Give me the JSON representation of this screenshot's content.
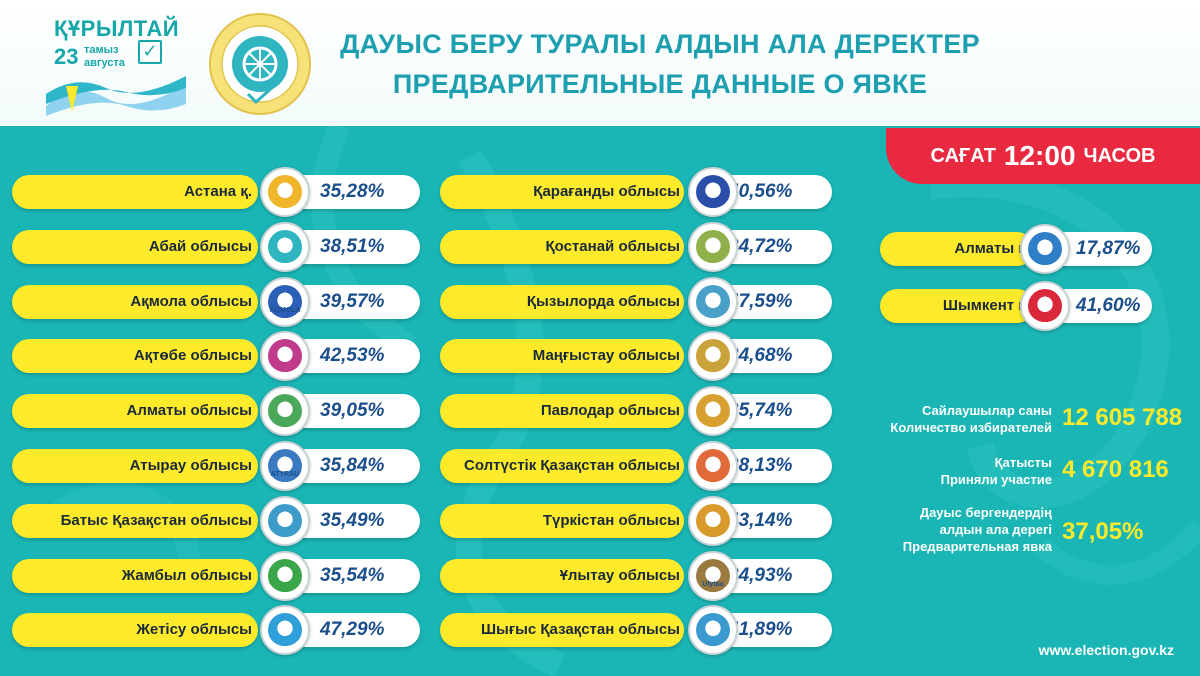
{
  "header": {
    "logo_title": "ҚҰРЫЛТАЙ",
    "logo_day": "23",
    "logo_month_kz": "тамыз",
    "logo_month_ru": "августа",
    "title_kz": "ДАУЫС БЕРУ ТУРАЛЫ АЛДЫН АЛА ДЕРЕКТЕР",
    "title_ru": "ПРЕДВАРИТЕЛЬНЫЕ ДАННЫЕ О ЯВКЕ"
  },
  "time_badge": {
    "prefix": "САҒАТ",
    "time": "12:00",
    "suffix": "ЧАСОВ"
  },
  "left_column": [
    {
      "label": "Астана қ.",
      "value": "35,28%",
      "emblem": "astana-emblem",
      "color": "#f0b62a"
    },
    {
      "label": "Абай облысы",
      "value": "38,51%",
      "emblem": "abai-emblem",
      "color": "#2fb5c0"
    },
    {
      "label": "Ақмола облысы",
      "value": "39,57%",
      "emblem": "aqmola-emblem",
      "emblem_text": "AQMOLA",
      "color": "#2b5fb8"
    },
    {
      "label": "Ақтөбе облысы",
      "value": "42,53%",
      "emblem": "aqtobe-emblem",
      "color": "#c03b8c"
    },
    {
      "label": "Алматы облысы",
      "value": "39,05%",
      "emblem": "almaty-region-emblem",
      "color": "#4aa85a"
    },
    {
      "label": "Атырау облысы",
      "value": "35,84%",
      "emblem": "atyrau-emblem",
      "emblem_text": "ATYRAU",
      "color": "#3a7ac0"
    },
    {
      "label": "Батыс Қазақстан облысы",
      "value": "35,49%",
      "emblem": "west-kazakhstan-emblem",
      "color": "#3d9bc9"
    },
    {
      "label": "Жамбыл облысы",
      "value": "35,54%",
      "emblem": "zhambyl-emblem",
      "color": "#3aa64a"
    },
    {
      "label": "Жетісу облысы",
      "value": "47,29%",
      "emblem": "zhetisu-emblem",
      "color": "#2e9fd8"
    }
  ],
  "middle_column": [
    {
      "label": "Қарағанды облысы",
      "value": "40,56%",
      "emblem": "karaganda-emblem",
      "color": "#2b4fa8"
    },
    {
      "label": "Қостанай облысы",
      "value": "34,72%",
      "emblem": "kostanay-emblem",
      "color": "#8fb04a"
    },
    {
      "label": "Қызылорда облысы",
      "value": "47,59%",
      "emblem": "kyzylorda-emblem",
      "color": "#4aa0c8"
    },
    {
      "label": "Маңғыстау облысы",
      "value": "34,68%",
      "emblem": "mangystau-emblem",
      "color": "#c9a23a"
    },
    {
      "label": "Павлодар облысы",
      "value": "35,74%",
      "emblem": "pavlodar-emblem",
      "color": "#d8a030"
    },
    {
      "label": "Солтүстік Қазақстан облысы",
      "value": "38,13%",
      "emblem": "north-kazakhstan-emblem",
      "color": "#e06a3a"
    },
    {
      "label": "Түркістан облысы",
      "value": "43,14%",
      "emblem": "turkistan-emblem",
      "color": "#d89a2a"
    },
    {
      "label": "Ұлытау облысы",
      "value": "34,93%",
      "emblem": "ulytau-emblem",
      "emblem_text": "Ulytau",
      "color": "#9b7a40"
    },
    {
      "label": "Шығыс Қазақстан облысы",
      "value": "41,89%",
      "emblem": "east-kazakhstan-emblem",
      "color": "#3a9ad0"
    }
  ],
  "right_column": [
    {
      "label": "Алматы қ.",
      "value": "17,87%",
      "emblem": "almaty-city-emblem",
      "color": "#2e7fc8"
    },
    {
      "label": "Шымкент қ.",
      "value": "41,60%",
      "emblem": "shymkent-emblem",
      "color": "#d8283a"
    }
  ],
  "stats": {
    "voters_kz": "Сайлаушылар саны",
    "voters_ru": "Количество избирателей",
    "voters_value": "12 605 788",
    "participated_kz": "Қатысты",
    "participated_ru": "Приняли участие",
    "participated_value": "4 670 816",
    "turnout_kz_1": "Дауыс бергендердің",
    "turnout_kz_2": "алдын ала дерегі",
    "turnout_ru": "Предварительная явка",
    "turnout_value": "37,05%"
  },
  "footer": {
    "url": "www.election.gov.kz"
  },
  "colors": {
    "teal": "#1ab5b5",
    "yellow": "#fcea2b",
    "red": "#e8293f",
    "title": "#1e9fb0"
  }
}
